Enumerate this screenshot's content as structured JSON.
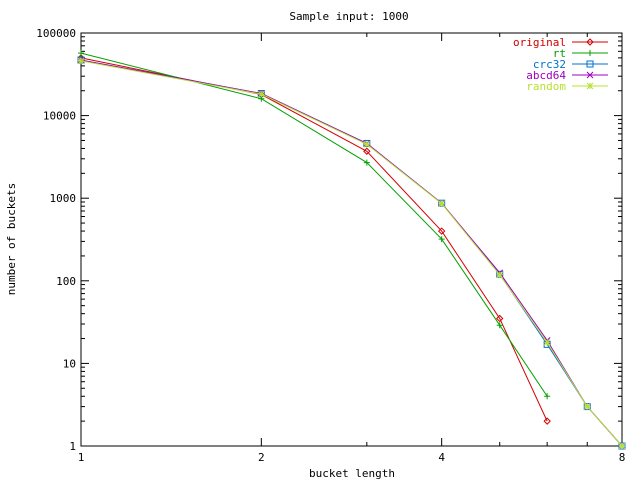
{
  "chart_data": {
    "type": "line",
    "title": "Sample input: 1000",
    "xlabel": "bucket length",
    "ylabel": "number of buckets",
    "x_scale": "log2",
    "y_scale": "log10",
    "xlim": [
      1,
      8
    ],
    "ylim": [
      1,
      100000
    ],
    "x_ticks": [
      1,
      2,
      4,
      8
    ],
    "x_tick_labels": [
      "1",
      "2",
      "4",
      "8"
    ],
    "y_ticks": [
      1,
      10,
      100,
      1000,
      10000,
      100000
    ],
    "y_tick_labels": [
      "1",
      "10",
      "100",
      "1000",
      "10000",
      "100000"
    ],
    "legend_position": "top-right",
    "grid": false,
    "series": [
      {
        "name": "original",
        "color": "#d40000",
        "marker": "diamond",
        "points": [
          [
            1,
            50000
          ],
          [
            2,
            18000
          ],
          [
            3,
            3700
          ],
          [
            4,
            400
          ],
          [
            5,
            35
          ],
          [
            6,
            2
          ]
        ]
      },
      {
        "name": "rt",
        "color": "#00a000",
        "marker": "plus",
        "points": [
          [
            1,
            57000
          ],
          [
            2,
            16000
          ],
          [
            3,
            2700
          ],
          [
            4,
            320
          ],
          [
            5,
            29
          ],
          [
            6,
            4
          ]
        ]
      },
      {
        "name": "crc32",
        "color": "#0070d0",
        "marker": "square",
        "points": [
          [
            1,
            47000
          ],
          [
            2,
            18500
          ],
          [
            3,
            4600
          ],
          [
            4,
            870
          ],
          [
            5,
            120
          ],
          [
            6,
            17
          ],
          [
            7,
            3
          ],
          [
            8,
            1
          ]
        ]
      },
      {
        "name": "abcd64",
        "color": "#a000c0",
        "marker": "x",
        "points": [
          [
            1,
            47000
          ],
          [
            2,
            18500
          ],
          [
            3,
            4600
          ],
          [
            4,
            870
          ],
          [
            5,
            125
          ],
          [
            6,
            19
          ],
          [
            7,
            3
          ],
          [
            8,
            1
          ]
        ]
      },
      {
        "name": "random",
        "color": "#b8e030",
        "marker": "star",
        "points": [
          [
            1,
            46000
          ],
          [
            2,
            18200
          ],
          [
            3,
            4500
          ],
          [
            4,
            860
          ],
          [
            5,
            118
          ],
          [
            6,
            18
          ],
          [
            7,
            3
          ],
          [
            8,
            1
          ]
        ]
      }
    ]
  }
}
